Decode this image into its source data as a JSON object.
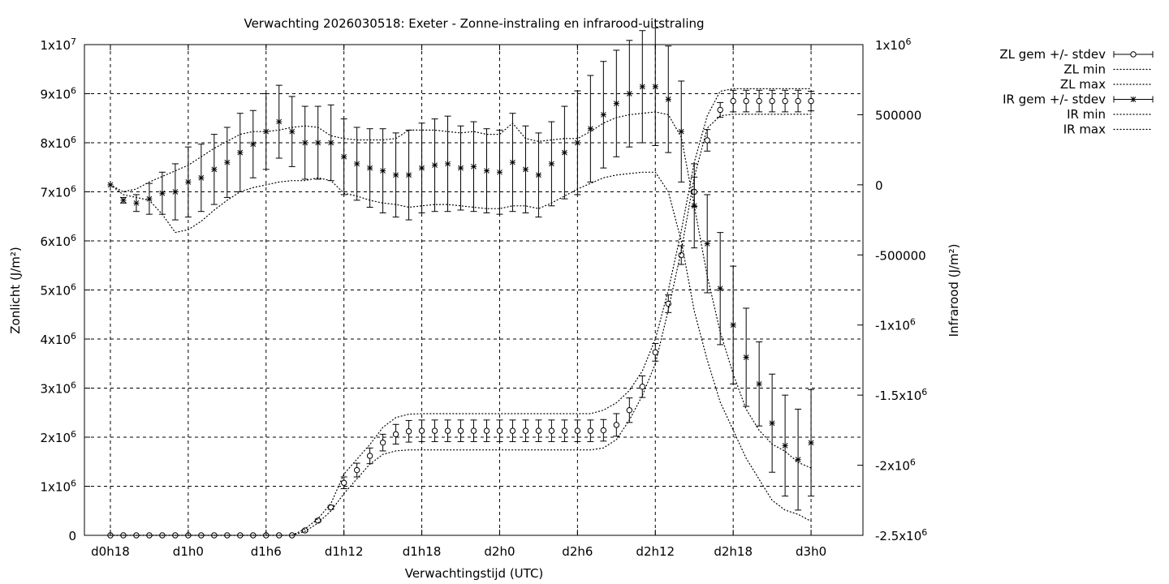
{
  "chart_data": {
    "type": "line",
    "title": "Verwachting 2026030518: Exeter - Zonne-instraling en infrarood-uitstraling",
    "xlabel": "Verwachtingstijd (UTC)",
    "ylabel_left": "Zonlicht (J/m²)",
    "ylabel_right": "Infrarood (J/m²)",
    "xlim_hours": [
      16,
      76
    ],
    "ylim_left": [
      0,
      10000000
    ],
    "ylim_right": [
      -2500000,
      1000000
    ],
    "grid": true,
    "legend_position": "outside-top-right",
    "x_ticks": [
      {
        "hour": 18,
        "label": "d0h18"
      },
      {
        "hour": 24,
        "label": "d1h0"
      },
      {
        "hour": 30,
        "label": "d1h6"
      },
      {
        "hour": 36,
        "label": "d1h12"
      },
      {
        "hour": 42,
        "label": "d1h18"
      },
      {
        "hour": 48,
        "label": "d2h0"
      },
      {
        "hour": 54,
        "label": "d2h6"
      },
      {
        "hour": 60,
        "label": "d2h12"
      },
      {
        "hour": 66,
        "label": "d2h18"
      },
      {
        "hour": 72,
        "label": "d3h0"
      }
    ],
    "y_left_ticks": [
      {
        "value": 0,
        "mant": "0",
        "exp": ""
      },
      {
        "value": 1000000,
        "mant": "1x10",
        "exp": "6"
      },
      {
        "value": 2000000,
        "mant": "2x10",
        "exp": "6"
      },
      {
        "value": 3000000,
        "mant": "3x10",
        "exp": "6"
      },
      {
        "value": 4000000,
        "mant": "4x10",
        "exp": "6"
      },
      {
        "value": 5000000,
        "mant": "5x10",
        "exp": "6"
      },
      {
        "value": 6000000,
        "mant": "6x10",
        "exp": "6"
      },
      {
        "value": 7000000,
        "mant": "7x10",
        "exp": "6"
      },
      {
        "value": 8000000,
        "mant": "8x10",
        "exp": "6"
      },
      {
        "value": 9000000,
        "mant": "9x10",
        "exp": "6"
      },
      {
        "value": 10000000,
        "mant": "1x10",
        "exp": "7"
      }
    ],
    "y_right_ticks": [
      {
        "value": 1000000,
        "mant": "1x10",
        "exp": "6"
      },
      {
        "value": 500000,
        "mant": "500000",
        "exp": ""
      },
      {
        "value": 0,
        "mant": "0",
        "exp": ""
      },
      {
        "value": -500000,
        "mant": "-500000",
        "exp": ""
      },
      {
        "value": -1000000,
        "mant": "-1x10",
        "exp": "6"
      },
      {
        "value": -1500000,
        "mant": "-1.5x10",
        "exp": "6"
      },
      {
        "value": -2000000,
        "mant": "-2x10",
        "exp": "6"
      },
      {
        "value": -2500000,
        "mant": "-2.5x10",
        "exp": "6"
      }
    ],
    "x_hours": [
      18,
      19,
      20,
      21,
      22,
      23,
      24,
      25,
      26,
      27,
      28,
      29,
      30,
      31,
      32,
      33,
      34,
      35,
      36,
      37,
      38,
      39,
      40,
      41,
      42,
      43,
      44,
      45,
      46,
      47,
      48,
      49,
      50,
      51,
      52,
      53,
      54,
      55,
      56,
      57,
      58,
      59,
      60,
      61,
      62,
      63,
      64,
      65,
      66,
      67,
      68,
      69,
      70,
      71,
      72
    ],
    "series": [
      {
        "name": "ZL gem +/- stdev",
        "axis": "left",
        "marker": "circle",
        "mean": [
          0,
          0,
          0,
          0,
          0,
          0,
          0,
          0,
          0,
          0,
          0,
          0,
          0,
          0,
          0,
          100000,
          300000,
          570000,
          1070000,
          1330000,
          1620000,
          1890000,
          2060000,
          2120000,
          2130000,
          2130000,
          2130000,
          2130000,
          2130000,
          2130000,
          2130000,
          2130000,
          2130000,
          2130000,
          2130000,
          2130000,
          2130000,
          2130000,
          2140000,
          2250000,
          2550000,
          3030000,
          3730000,
          4720000,
          5710000,
          7000000,
          8050000,
          8670000,
          8850000,
          8850000,
          8850000,
          8850000,
          8850000,
          8850000,
          8850000
        ],
        "stdev": [
          0,
          0,
          0,
          0,
          0,
          0,
          0,
          0,
          0,
          0,
          0,
          0,
          0,
          0,
          0,
          20000,
          30000,
          40000,
          120000,
          140000,
          160000,
          170000,
          200000,
          220000,
          220000,
          220000,
          220000,
          220000,
          220000,
          220000,
          220000,
          220000,
          220000,
          220000,
          220000,
          220000,
          220000,
          220000,
          220000,
          230000,
          250000,
          220000,
          180000,
          180000,
          190000,
          300000,
          220000,
          150000,
          220000,
          220000,
          220000,
          220000,
          220000,
          220000,
          200000
        ]
      },
      {
        "name": "ZL min",
        "axis": "left",
        "style": "dotted",
        "values": [
          0,
          0,
          0,
          0,
          0,
          0,
          0,
          0,
          0,
          0,
          0,
          0,
          0,
          0,
          0,
          80000,
          250000,
          500000,
          850000,
          1150000,
          1450000,
          1650000,
          1720000,
          1740000,
          1740000,
          1740000,
          1740000,
          1740000,
          1740000,
          1740000,
          1740000,
          1740000,
          1740000,
          1740000,
          1740000,
          1740000,
          1740000,
          1740000,
          1780000,
          1950000,
          2350000,
          2850000,
          3500000,
          4600000,
          5800000,
          7300000,
          8300000,
          8550000,
          8580000,
          8580000,
          8580000,
          8580000,
          8580000,
          8580000,
          8580000
        ]
      },
      {
        "name": "ZL max",
        "axis": "left",
        "style": "dotted",
        "values": [
          0,
          0,
          0,
          0,
          0,
          0,
          0,
          0,
          0,
          0,
          0,
          0,
          0,
          0,
          0,
          130000,
          340000,
          650000,
          1250000,
          1550000,
          1850000,
          2200000,
          2400000,
          2470000,
          2480000,
          2480000,
          2480000,
          2480000,
          2480000,
          2480000,
          2480000,
          2480000,
          2480000,
          2480000,
          2480000,
          2480000,
          2480000,
          2480000,
          2550000,
          2700000,
          2950000,
          3350000,
          4000000,
          5000000,
          6200000,
          7600000,
          8550000,
          9050000,
          9100000,
          9100000,
          9100000,
          9100000,
          9100000,
          9100000,
          9100000
        ]
      },
      {
        "name": "IR gem +/- stdev",
        "axis": "right",
        "marker": "star",
        "mean": [
          0,
          -110000,
          -130000,
          -100000,
          -60000,
          -50000,
          20000,
          50000,
          110000,
          160000,
          230000,
          290000,
          380000,
          450000,
          380000,
          300000,
          300000,
          300000,
          200000,
          150000,
          120000,
          100000,
          70000,
          70000,
          120000,
          140000,
          150000,
          120000,
          130000,
          100000,
          90000,
          160000,
          110000,
          70000,
          150000,
          230000,
          300000,
          400000,
          500000,
          580000,
          650000,
          700000,
          700000,
          610000,
          380000,
          -150000,
          -420000,
          -740000,
          -1000000,
          -1230000,
          -1420000,
          -1700000,
          -1860000,
          -1960000,
          -1840000
        ],
        "stdev": [
          0,
          20000,
          60000,
          110000,
          150000,
          200000,
          250000,
          240000,
          250000,
          250000,
          280000,
          240000,
          270000,
          260000,
          250000,
          260000,
          260000,
          270000,
          270000,
          260000,
          280000,
          300000,
          300000,
          320000,
          320000,
          330000,
          340000,
          300000,
          320000,
          300000,
          300000,
          350000,
          310000,
          300000,
          300000,
          330000,
          370000,
          380000,
          380000,
          380000,
          380000,
          400000,
          420000,
          380000,
          360000,
          300000,
          350000,
          400000,
          420000,
          350000,
          300000,
          350000,
          360000,
          360000,
          380000
        ]
      },
      {
        "name": "IR min",
        "axis": "right",
        "style": "dotted",
        "values": [
          0,
          -70000,
          -90000,
          -110000,
          -210000,
          -340000,
          -320000,
          -260000,
          -180000,
          -110000,
          -50000,
          -20000,
          0,
          20000,
          30000,
          30000,
          50000,
          30000,
          -60000,
          -80000,
          -110000,
          -130000,
          -140000,
          -160000,
          -150000,
          -140000,
          -140000,
          -150000,
          -160000,
          -170000,
          -170000,
          -150000,
          -150000,
          -170000,
          -130000,
          -80000,
          -30000,
          10000,
          50000,
          70000,
          80000,
          90000,
          90000,
          -50000,
          -400000,
          -900000,
          -1250000,
          -1550000,
          -1750000,
          -1950000,
          -2100000,
          -2250000,
          -2320000,
          -2350000,
          -2400000
        ]
      },
      {
        "name": "IR max",
        "axis": "right",
        "style": "dotted",
        "values": [
          0,
          -50000,
          -30000,
          20000,
          60000,
          100000,
          140000,
          200000,
          260000,
          310000,
          360000,
          380000,
          380000,
          390000,
          410000,
          420000,
          410000,
          350000,
          330000,
          320000,
          320000,
          320000,
          330000,
          390000,
          390000,
          390000,
          380000,
          370000,
          380000,
          360000,
          360000,
          440000,
          330000,
          310000,
          320000,
          330000,
          330000,
          380000,
          440000,
          480000,
          500000,
          510000,
          520000,
          500000,
          340000,
          -150000,
          -650000,
          -1050000,
          -1350000,
          -1600000,
          -1750000,
          -1850000,
          -1900000,
          -1980000,
          -2020000
        ]
      }
    ]
  }
}
